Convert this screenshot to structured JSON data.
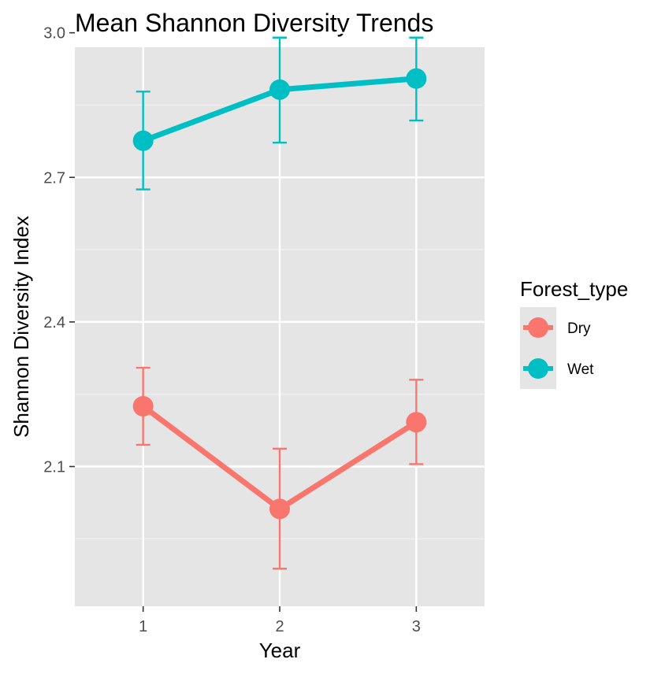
{
  "chart_data": {
    "type": "line",
    "title": "Mean Shannon Diversity Trends",
    "xlabel": "Year",
    "ylabel": "Shannon Diversity Index",
    "x": [
      1,
      2,
      3
    ],
    "x_ticks": [
      "1",
      "2",
      "3"
    ],
    "xlim": [
      0.5,
      3.5
    ],
    "y_ticks": [
      "2.1",
      "2.4",
      "2.7",
      "3.0"
    ],
    "y_tick_values": [
      2.1,
      2.4,
      2.7,
      3.0
    ],
    "ylim": [
      1.81,
      2.97
    ],
    "grid": true,
    "legend": {
      "title": "Forest_type",
      "placement": "right"
    },
    "series": [
      {
        "name": "Dry",
        "color": "#F8766D",
        "values": [
          2.225,
          2.012,
          2.192
        ],
        "error_low": [
          2.145,
          1.888,
          2.105
        ],
        "error_high": [
          2.305,
          2.137,
          2.28
        ]
      },
      {
        "name": "Wet",
        "color": "#00BFC4",
        "values": [
          2.776,
          2.882,
          2.905
        ],
        "error_low": [
          2.675,
          2.772,
          2.818
        ],
        "error_high": [
          2.878,
          2.99,
          2.99
        ]
      }
    ]
  }
}
